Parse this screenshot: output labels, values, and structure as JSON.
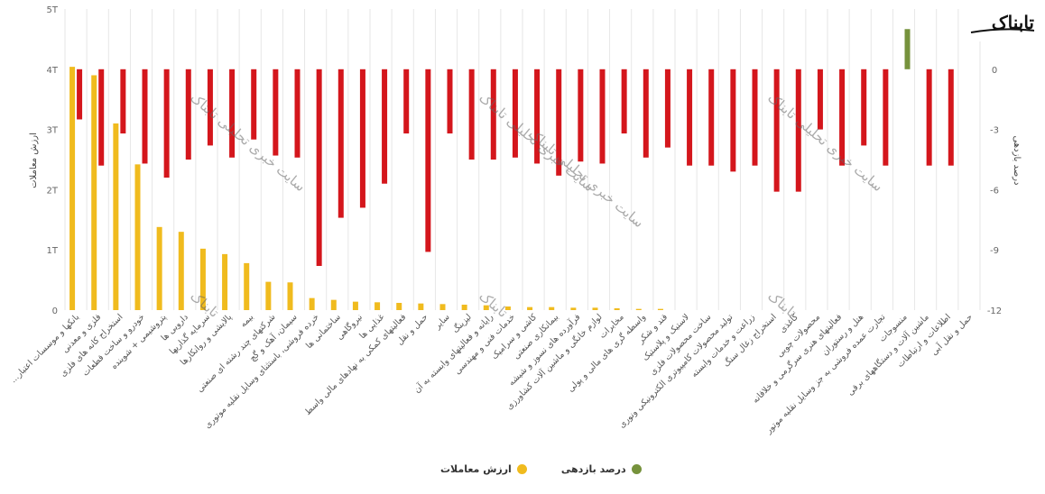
{
  "brand": {
    "logo_text": "تابناک"
  },
  "chart_data": {
    "type": "bar",
    "y_left": {
      "title": "ارزش معاملات",
      "min": 0,
      "max": 5,
      "ticks": [
        "0",
        "1T",
        "2T",
        "3T",
        "4T",
        "5T"
      ]
    },
    "y_right": {
      "title": "درصد بازدهی",
      "min": -12,
      "max": 3,
      "ticks": [
        "-12",
        "-9",
        "-6",
        "-3",
        "0",
        "3"
      ]
    },
    "categories": [
      "بانکها و موسسات اعتبار...",
      "فلزی و معدنی",
      "استخراج کانه های فلزی",
      "خودرو و ساخت قطعات",
      "پتروشیمی + شوینده",
      "دارویی ها",
      "سرمایه گذاریها",
      "پالایشی و روانکارها",
      "بیمه",
      "شرکتهای چند رشته ای صنعتی",
      "سیمان، آهک و گچ",
      "خرده فروشی، باستثنای وسایل نقلیه موتوری",
      "ساختمانی ها",
      "نیروگاهی",
      "غذایی ها",
      "فعالیتهای کمکی به نهادهای مالی واسط",
      "حمل و نقل",
      "سایر",
      "لیزینگ",
      "رایانه و فعالیتهای وابسته به آن",
      "خدمات فنی و مهندسی",
      "کاشی و سرامیک",
      "بیمانکاری صنعتی",
      "فرآورده های نسوز و شیشه",
      "لوازم خانگی و ماشین آلات کشاورزی",
      "مخابرات",
      "واسطه گری های مالی و پولی",
      "قند و شکر",
      "لاستیک و پلاستیک",
      "ساخت محصولات فلزی",
      "تولید محصولات کامپیوتری الکترونیکی ونوری",
      "زراعت و خدمات وابسته",
      "استخراج زغال سنگ",
      "کاغذی",
      "محصولات چوبی",
      "فعالیتهای هنری سرگرمی و خلاقانه",
      "هتل و رستوران",
      "تجارت عمده فروشی به جز وسایل نقلیه موتور",
      "منسوجات",
      "ماشین آلات و دستگاههای برقی",
      "اطلاعات و ارتباطات",
      "حمل و نقل آبی"
    ],
    "series": [
      {
        "name": "ارزش معاملات",
        "axis": "left",
        "color": "#f0bb1e",
        "values": [
          4.04,
          3.9,
          3.1,
          2.42,
          1.38,
          1.3,
          1.02,
          0.93,
          0.78,
          0.47,
          0.46,
          0.2,
          0.17,
          0.14,
          0.13,
          0.12,
          0.11,
          0.1,
          0.09,
          0.08,
          0.06,
          0.05,
          0.05,
          0.04,
          0.04,
          0.03,
          0.02,
          0.02,
          0,
          0,
          0,
          0,
          0,
          0,
          0,
          0,
          0,
          0,
          0,
          0,
          0,
          0
        ]
      },
      {
        "name": "درصد بازدهی",
        "axis": "right",
        "color": "#d4161c",
        "positive_color": "#76923c",
        "values": [
          -2.5,
          -4.8,
          -3.2,
          -4.7,
          -5.4,
          -4.5,
          -3.8,
          -4.4,
          -3.5,
          -4.3,
          -4.4,
          -9.8,
          -7.4,
          -6.9,
          -5.7,
          -3.2,
          -9.1,
          -3.2,
          -4.5,
          -4.5,
          -4.4,
          -4.7,
          -5.3,
          -4.6,
          -4.7,
          -3.2,
          -4.4,
          -3.9,
          -4.8,
          -4.8,
          -5.1,
          -4.8,
          -6.1,
          -6.1,
          -3.0,
          -4.8,
          -3.8,
          -4.8,
          2.0,
          -4.8,
          -4.8,
          0
        ]
      }
    ],
    "grid": "vertical",
    "legend": {
      "position": "bottom-center",
      "items": [
        {
          "label": "درصد بازدهی",
          "color": "#76923c"
        },
        {
          "label": "ارزش معاملات",
          "color": "#f0bb1e"
        }
      ]
    }
  },
  "watermarks": [
    "سایت خبری تحلیلی تابناک",
    "سایت خبری تحلیلی تابناک",
    "سایت خبری تحلیلی تابناک",
    "سایت خبری تحلیلی تابناک",
    "تابناک",
    "تابناک",
    "تابناک"
  ]
}
